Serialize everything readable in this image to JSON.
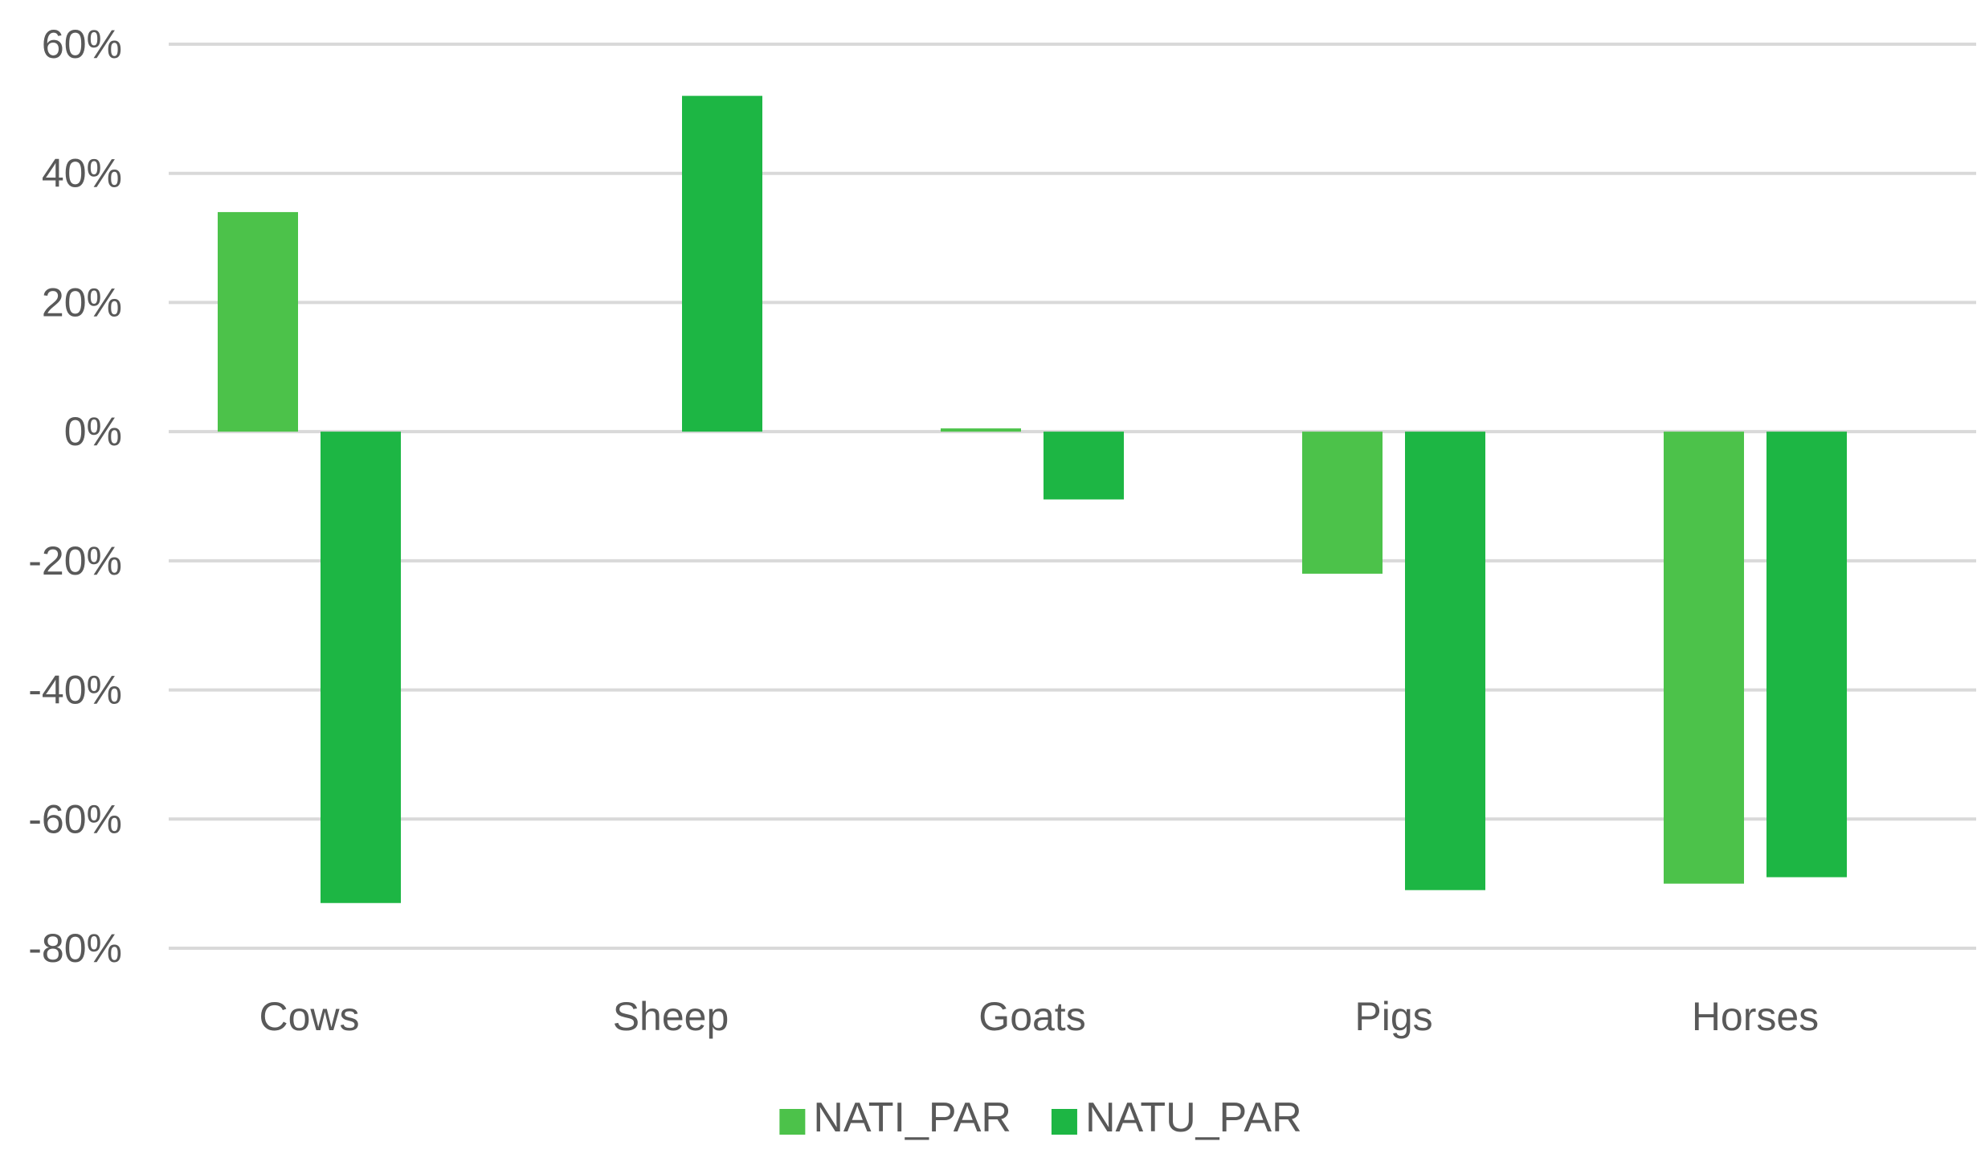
{
  "chart_data": {
    "type": "bar",
    "categories": [
      "Cows",
      "Sheep",
      "Goats",
      "Pigs",
      "Horses"
    ],
    "series": [
      {
        "name": "NATI_PAR",
        "color": "#4cc24a",
        "values": [
          34,
          0,
          0.5,
          -22,
          -70
        ]
      },
      {
        "name": "NATU_PAR",
        "color": "#1db644",
        "values": [
          -73,
          52,
          -10.5,
          -71,
          -69
        ]
      }
    ],
    "ylim": [
      -80,
      60
    ],
    "yticks": [
      "60%",
      "40%",
      "20%",
      "0%",
      "-20%",
      "-40%",
      "-60%",
      "-80%"
    ],
    "ytick_values": [
      60,
      40,
      20,
      0,
      -20,
      -40,
      -60,
      -80
    ],
    "grid": true,
    "legend_position": "bottom"
  }
}
